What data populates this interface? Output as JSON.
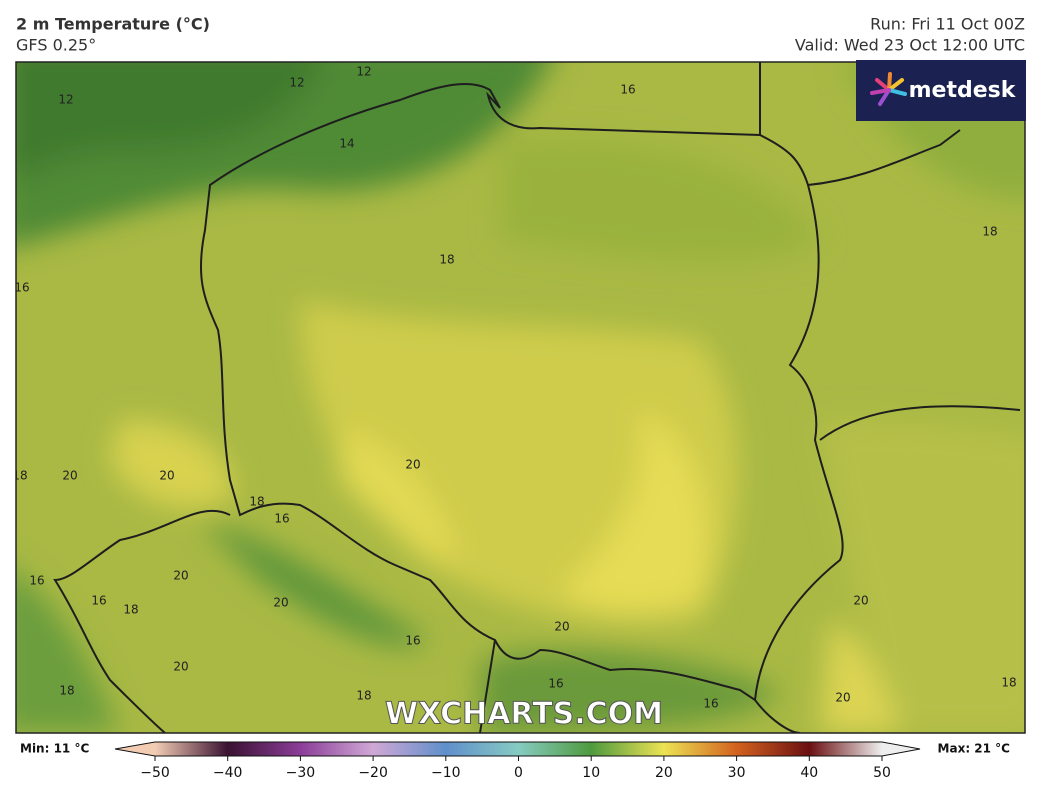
{
  "header": {
    "title": "2 m Temperature (°C)",
    "model": "GFS 0.25°",
    "run": "Run: Fri 11 Oct 00Z",
    "valid": "Valid: Wed 23 Oct 12:00 UTC"
  },
  "logo": "metdesk",
  "watermark": "WXCHARTS.COM",
  "contour_labels": [
    "12",
    "12",
    "12",
    "16",
    "14",
    "18",
    "18",
    "16",
    "20",
    "18",
    "20",
    "20",
    "18",
    "16",
    "20",
    "16",
    "16",
    "18",
    "20",
    "20",
    "20",
    "16",
    "20",
    "18",
    "18",
    "16",
    "20",
    "18",
    "16"
  ],
  "colorbar": {
    "min_label": "Min: 11 °C",
    "max_label": "Max: 21 °C",
    "lim": [
      -50,
      50
    ],
    "ticks": [
      {
        "value": -50,
        "label": "−50"
      },
      {
        "value": -40,
        "label": "−40"
      },
      {
        "value": -30,
        "label": "−30"
      },
      {
        "value": -20,
        "label": "−20"
      },
      {
        "value": -10,
        "label": "−10"
      },
      0,
      10,
      20,
      30,
      40,
      50
    ]
  }
}
